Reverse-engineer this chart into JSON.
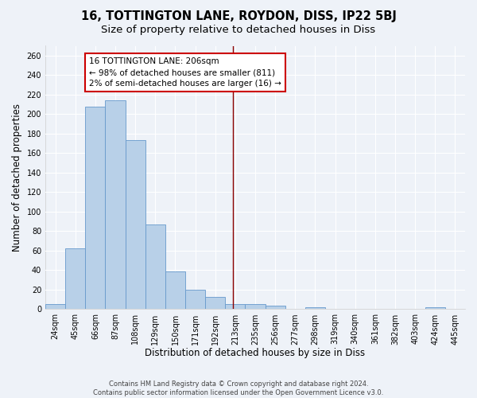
{
  "title": "16, TOTTINGTON LANE, ROYDON, DISS, IP22 5BJ",
  "subtitle": "Size of property relative to detached houses in Diss",
  "xlabel": "Distribution of detached houses by size in Diss",
  "ylabel": "Number of detached properties",
  "categories": [
    "24sqm",
    "45sqm",
    "66sqm",
    "87sqm",
    "108sqm",
    "129sqm",
    "150sqm",
    "171sqm",
    "192sqm",
    "213sqm",
    "235sqm",
    "256sqm",
    "277sqm",
    "298sqm",
    "319sqm",
    "340sqm",
    "361sqm",
    "382sqm",
    "403sqm",
    "424sqm",
    "445sqm"
  ],
  "values": [
    5,
    62,
    208,
    214,
    173,
    87,
    39,
    20,
    13,
    5,
    5,
    4,
    0,
    2,
    0,
    0,
    0,
    0,
    0,
    2,
    0
  ],
  "bar_color": "#b8d0e8",
  "bar_edge_color": "#6699cc",
  "vline_color": "#8b0000",
  "annotation_text": "16 TOTTINGTON LANE: 206sqm\n← 98% of detached houses are smaller (811)\n2% of semi-detached houses are larger (16) →",
  "annotation_box_color": "#ffffff",
  "annotation_box_edge": "#cc0000",
  "ylim": [
    0,
    270
  ],
  "yticks": [
    0,
    20,
    40,
    60,
    80,
    100,
    120,
    140,
    160,
    180,
    200,
    220,
    240,
    260
  ],
  "background_color": "#eef2f8",
  "grid_color": "#ffffff",
  "footer_text": "Contains HM Land Registry data © Crown copyright and database right 2024.\nContains public sector information licensed under the Open Government Licence v3.0.",
  "title_fontsize": 10.5,
  "subtitle_fontsize": 9.5,
  "axis_label_fontsize": 8.5,
  "tick_fontsize": 7,
  "annotation_fontsize": 7.5,
  "footer_fontsize": 6
}
